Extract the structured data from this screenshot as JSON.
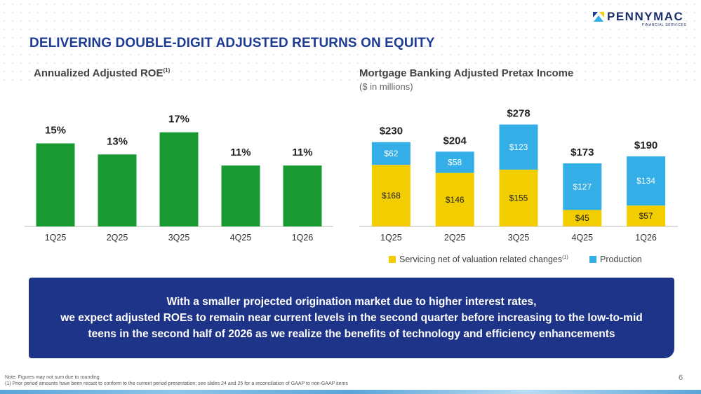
{
  "logo": {
    "name": "PENNYMAC",
    "sub": "FINANCIAL SERVICES"
  },
  "title": "DELIVERING DOUBLE-DIGIT ADJUSTED RETURNS ON EQUITY",
  "colors": {
    "title": "#1c3b94",
    "roe_bar": "#1a9a33",
    "servicing": "#f2cd00",
    "production": "#33aee6",
    "callout_bg": "#1e3489"
  },
  "roe_chart": {
    "title": "Annualized Adjusted ROE",
    "footnote_ref": "(1)"
  },
  "income_chart": {
    "title": "Mortgage Banking Adjusted Pretax Income",
    "subtitle": "($ in millions)"
  },
  "legend": {
    "servicing": "Servicing net of valuation related changes",
    "servicing_ref": "(1)",
    "production": "Production"
  },
  "chart_data": [
    {
      "type": "bar",
      "title": "Annualized Adjusted ROE(1)",
      "categories": [
        "1Q25",
        "2Q25",
        "3Q25",
        "4Q25",
        "1Q26"
      ],
      "values": [
        15,
        13,
        17,
        11,
        11
      ],
      "labels": [
        "15%",
        "13%",
        "17%",
        "11%",
        "11%"
      ],
      "ylim": [
        0,
        20
      ],
      "grid": false
    },
    {
      "type": "bar",
      "stacked": true,
      "title": "Mortgage Banking Adjusted Pretax Income",
      "subtitle": "($ in millions)",
      "categories": [
        "1Q25",
        "2Q25",
        "3Q25",
        "4Q25",
        "1Q26"
      ],
      "series": [
        {
          "name": "Servicing net of valuation related changes(1)",
          "values": [
            168,
            146,
            155,
            45,
            57
          ],
          "labels": [
            "$168",
            "$146",
            "$155",
            "$45",
            "$57"
          ]
        },
        {
          "name": "Production",
          "values": [
            62,
            58,
            123,
            127,
            134
          ],
          "labels": [
            "$62",
            "$58",
            "$123",
            "$127",
            "$134"
          ]
        }
      ],
      "totals": [
        230,
        204,
        278,
        173,
        190
      ],
      "total_labels": [
        "$230",
        "$204",
        "$278",
        "$173",
        "$190"
      ],
      "ylim": [
        0,
        300
      ],
      "grid": false,
      "legend": "bottom"
    }
  ],
  "callout": {
    "lines": [
      "With a smaller projected origination market due to higher interest rates,",
      "we expect adjusted ROEs to remain near current levels in the second quarter before increasing to the low-to-mid",
      "teens in the second half of 2026 as we realize the benefits of technology and efficiency enhancements"
    ]
  },
  "notes": [
    "Note: Figures may not sum due to rounding",
    "(1) Prior period amounts have been recast to conform to the current period presentation; see slides 24 and 25 for a reconciliation of GAAP to non-GAAP items"
  ],
  "page_number": "6"
}
